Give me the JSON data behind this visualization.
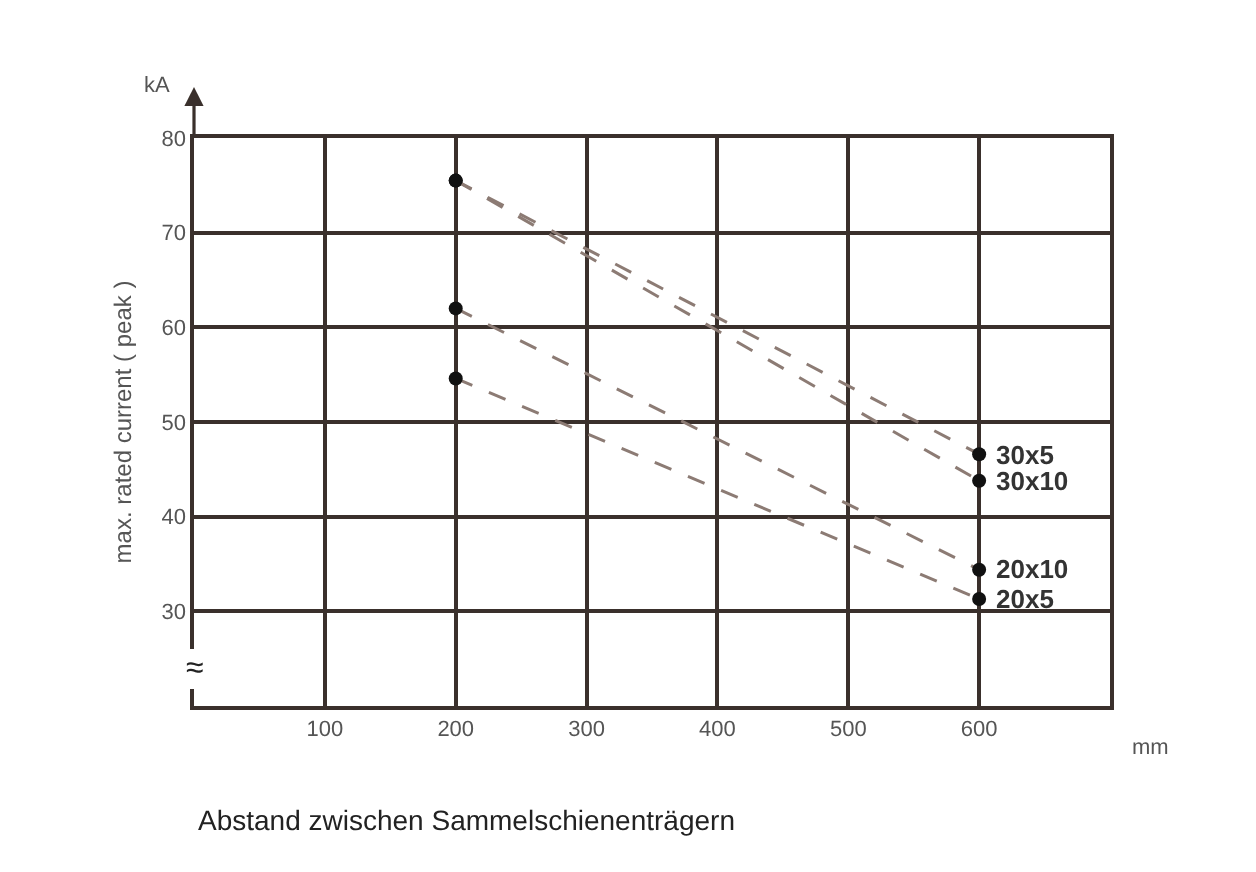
{
  "chart_data": {
    "type": "line",
    "ylabel": "max. rated current ( peak )",
    "annotations": [
      "kA",
      "mm",
      "Abstand zwischen Sammelschienenträgern",
      {
        "text": "≈",
        "x": 0,
        "y": 24
      }
    ],
    "x": [
      200,
      600
    ],
    "series": [
      {
        "name": "30x5",
        "color": "#8c7b74",
        "values": [
          75.5,
          46.6
        ]
      },
      {
        "name": "30x10",
        "color": "#8c7b74",
        "values": [
          75.5,
          43.8
        ]
      },
      {
        "name": "20x10",
        "color": "#8c7b74",
        "values": [
          62,
          34.4
        ]
      },
      {
        "name": "20x5",
        "color": "#8c7b74",
        "values": [
          54.6,
          31.3
        ]
      }
    ],
    "xlim": [
      0,
      700
    ],
    "xticks": [
      100,
      200,
      300,
      400,
      500,
      600
    ],
    "ylim": [
      20,
      80
    ],
    "yticks": [
      30,
      40,
      50,
      60,
      70,
      80
    ],
    "grid": true,
    "legend": false,
    "marker": "circle",
    "line_style": "dashed"
  }
}
